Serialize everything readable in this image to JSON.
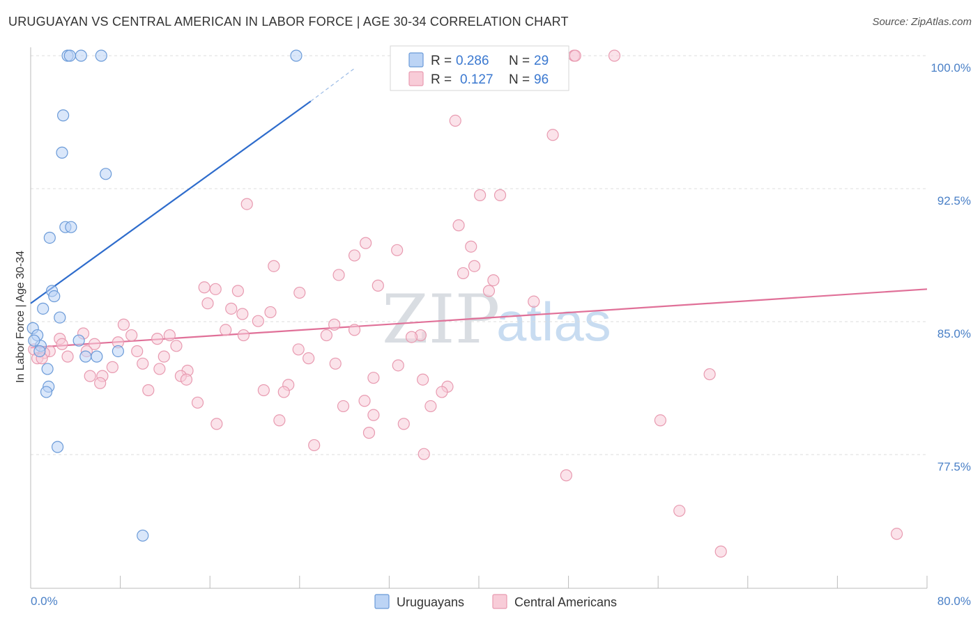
{
  "title": "URUGUAYAN VS CENTRAL AMERICAN IN LABOR FORCE | AGE 30-34 CORRELATION CHART",
  "source": "Source: ZipAtlas.com",
  "watermark": {
    "zip": "ZIP",
    "atlas": "atlas"
  },
  "colors": {
    "blue_fill": "#bcd4f5",
    "blue_stroke": "#6a9ad8",
    "blue_line": "#2e6ccc",
    "pink_fill": "#f8ccd8",
    "pink_stroke": "#e89ab0",
    "pink_line": "#e07098",
    "grid": "#dcdcdc",
    "tick_label": "#4a80c7"
  },
  "legend": {
    "rows": [
      {
        "r_label": "R =",
        "r_value": "0.286",
        "n_label": "N =",
        "n_value": "29"
      },
      {
        "r_label": "R =",
        "r_value": "0.127",
        "n_label": "N =",
        "n_value": "96"
      }
    ]
  },
  "bottom_legend": [
    "Uruguayans",
    "Central Americans"
  ],
  "chart_data": {
    "type": "scatter",
    "title": "URUGUAYAN VS CENTRAL AMERICAN IN LABOR FORCE | AGE 30-34 CORRELATION CHART",
    "xlabel": "",
    "ylabel": "In Labor Force | Age 30-34",
    "xlim": [
      0,
      80
    ],
    "ylim": [
      70.5,
      101
    ],
    "x_tick_labels": [
      "0.0%",
      "80.0%"
    ],
    "y_ticks": [
      77.5,
      85.0,
      92.5,
      100.0
    ],
    "y_tick_labels": [
      "77.5%",
      "85.0%",
      "92.5%",
      "100.0%"
    ],
    "grid": true,
    "legend_position": "top-center",
    "series": [
      {
        "name": "Uruguayans",
        "color": "#bcd4f5",
        "r": 0.286,
        "n": 29,
        "trend": {
          "x0": 0.0,
          "y0": 86.7,
          "x1": 25.0,
          "y1": 98.1,
          "dash_to_x": 29.0,
          "dash_to_y": 100.0
        },
        "points": [
          [
            3.3,
            100.0
          ],
          [
            3.5,
            100.0
          ],
          [
            4.5,
            100.0
          ],
          [
            6.3,
            100.0
          ],
          [
            23.7,
            100.0
          ],
          [
            2.9,
            97.3
          ],
          [
            2.8,
            95.2
          ],
          [
            6.7,
            94.0
          ],
          [
            3.1,
            91.0
          ],
          [
            3.6,
            91.0
          ],
          [
            1.7,
            90.4
          ],
          [
            1.9,
            87.4
          ],
          [
            2.1,
            87.1
          ],
          [
            1.1,
            86.4
          ],
          [
            2.6,
            85.9
          ],
          [
            0.2,
            85.3
          ],
          [
            0.6,
            84.9
          ],
          [
            0.9,
            84.3
          ],
          [
            4.3,
            84.6
          ],
          [
            7.8,
            84.0
          ],
          [
            1.5,
            83.0
          ],
          [
            4.9,
            83.7
          ],
          [
            5.9,
            83.7
          ],
          [
            1.6,
            82.0
          ],
          [
            1.4,
            81.7
          ],
          [
            2.4,
            78.6
          ],
          [
            10.0,
            73.6
          ],
          [
            0.3,
            84.6
          ],
          [
            0.8,
            84.0
          ]
        ]
      },
      {
        "name": "Central Americans",
        "color": "#f8ccd8",
        "r": 0.127,
        "n": 96,
        "trend": {
          "x0": 0.0,
          "y0": 84.2,
          "x1": 80.0,
          "y1": 87.5
        },
        "points": [
          [
            43.1,
            100.0
          ],
          [
            43.7,
            100.0
          ],
          [
            48.5,
            100.0
          ],
          [
            52.1,
            100.0
          ],
          [
            48.6,
            100.0
          ],
          [
            37.9,
            97.0
          ],
          [
            46.6,
            96.2
          ],
          [
            19.3,
            92.3
          ],
          [
            40.1,
            92.8
          ],
          [
            41.9,
            92.8
          ],
          [
            38.2,
            91.1
          ],
          [
            29.9,
            90.1
          ],
          [
            32.7,
            89.7
          ],
          [
            28.9,
            89.4
          ],
          [
            39.3,
            89.9
          ],
          [
            21.7,
            88.8
          ],
          [
            27.5,
            88.3
          ],
          [
            38.6,
            88.4
          ],
          [
            39.6,
            88.8
          ],
          [
            31.0,
            87.7
          ],
          [
            41.3,
            88.0
          ],
          [
            15.5,
            87.6
          ],
          [
            16.5,
            87.5
          ],
          [
            18.5,
            87.4
          ],
          [
            24.0,
            87.3
          ],
          [
            40.9,
            87.4
          ],
          [
            15.8,
            86.7
          ],
          [
            44.9,
            86.8
          ],
          [
            17.9,
            86.4
          ],
          [
            18.9,
            86.1
          ],
          [
            21.4,
            86.2
          ],
          [
            20.3,
            85.7
          ],
          [
            27.1,
            85.5
          ],
          [
            8.3,
            85.5
          ],
          [
            12.4,
            84.9
          ],
          [
            17.4,
            85.2
          ],
          [
            9.0,
            84.9
          ],
          [
            26.4,
            84.9
          ],
          [
            28.9,
            85.2
          ],
          [
            34.8,
            84.9
          ],
          [
            34.0,
            84.8
          ],
          [
            19.0,
            84.9
          ],
          [
            11.3,
            84.7
          ],
          [
            13.0,
            84.3
          ],
          [
            7.8,
            84.5
          ],
          [
            5.7,
            84.4
          ],
          [
            4.7,
            85.0
          ],
          [
            2.6,
            84.7
          ],
          [
            2.8,
            84.4
          ],
          [
            1.7,
            84.0
          ],
          [
            1.2,
            83.9
          ],
          [
            3.3,
            83.7
          ],
          [
            5.0,
            84.0
          ],
          [
            9.5,
            84.0
          ],
          [
            23.9,
            84.1
          ],
          [
            11.9,
            83.7
          ],
          [
            24.8,
            83.6
          ],
          [
            10.0,
            83.3
          ],
          [
            27.2,
            83.3
          ],
          [
            32.8,
            83.2
          ],
          [
            7.3,
            83.1
          ],
          [
            11.5,
            83.0
          ],
          [
            14.0,
            82.9
          ],
          [
            13.4,
            82.6
          ],
          [
            5.3,
            82.6
          ],
          [
            6.4,
            82.6
          ],
          [
            30.6,
            82.5
          ],
          [
            35.0,
            82.4
          ],
          [
            60.6,
            82.7
          ],
          [
            13.9,
            82.4
          ],
          [
            6.2,
            82.2
          ],
          [
            23.0,
            82.1
          ],
          [
            37.2,
            82.0
          ],
          [
            10.5,
            81.8
          ],
          [
            20.8,
            81.8
          ],
          [
            22.6,
            81.7
          ],
          [
            36.7,
            81.7
          ],
          [
            14.9,
            81.1
          ],
          [
            29.8,
            81.2
          ],
          [
            27.9,
            80.9
          ],
          [
            35.7,
            80.9
          ],
          [
            30.6,
            80.4
          ],
          [
            22.2,
            80.1
          ],
          [
            16.6,
            79.9
          ],
          [
            33.3,
            79.9
          ],
          [
            56.2,
            80.1
          ],
          [
            30.2,
            79.4
          ],
          [
            25.3,
            78.7
          ],
          [
            35.1,
            78.2
          ],
          [
            47.8,
            77.0
          ],
          [
            57.9,
            75.0
          ],
          [
            77.3,
            73.7
          ],
          [
            61.6,
            72.7
          ],
          [
            0.3,
            84.1
          ],
          [
            0.6,
            83.6
          ],
          [
            1.0,
            83.6
          ]
        ]
      }
    ]
  }
}
